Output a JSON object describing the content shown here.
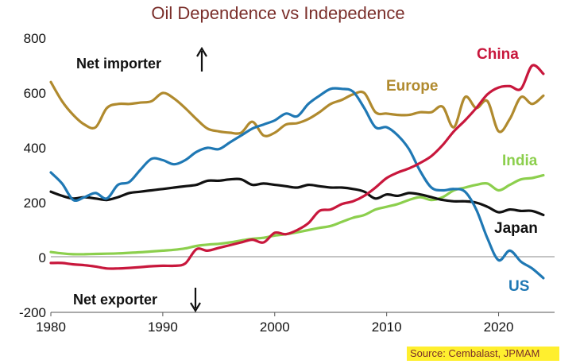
{
  "chart_data": {
    "type": "line",
    "title": "Oil Dependence vs Indepedence",
    "xlabel": "",
    "ylabel": "",
    "xlim": [
      1980,
      2025
    ],
    "ylim": [
      -200,
      800
    ],
    "x_ticks": [
      1980,
      1990,
      2000,
      2010,
      2020
    ],
    "x_tick_labels": [
      "1980",
      "1990",
      "2000",
      "2010",
      "2020"
    ],
    "y_ticks": [
      -200,
      0,
      200,
      400,
      600,
      800
    ],
    "y_tick_labels": [
      "-200",
      "0",
      "200",
      "400",
      "600",
      "800"
    ],
    "grid": "horizontal-at-zero",
    "annotations": {
      "net_importer": "Net importer",
      "net_exporter": "Net exporter",
      "source": "Source: Cembalast, JPMAM"
    },
    "series": [
      {
        "name": "US",
        "color": "#1f78b4",
        "x": [
          1980,
          1981,
          1982,
          1983,
          1984,
          1985,
          1986,
          1987,
          1988,
          1989,
          1990,
          1991,
          1992,
          1993,
          1994,
          1995,
          1996,
          1997,
          1998,
          1999,
          2000,
          2001,
          2002,
          2003,
          2004,
          2005,
          2006,
          2007,
          2008,
          2009,
          2010,
          2011,
          2012,
          2013,
          2014,
          2015,
          2016,
          2017,
          2018,
          2019,
          2020,
          2021,
          2022,
          2023,
          2024
        ],
        "values": [
          310,
          270,
          210,
          220,
          235,
          215,
          265,
          275,
          320,
          360,
          355,
          340,
          355,
          385,
          400,
          395,
          420,
          445,
          470,
          485,
          500,
          525,
          515,
          560,
          590,
          615,
          615,
          605,
          545,
          475,
          475,
          445,
          395,
          315,
          255,
          245,
          250,
          240,
          175,
          70,
          -10,
          25,
          -15,
          -40,
          -75
        ]
      },
      {
        "name": "Europe",
        "color": "#b08a2e",
        "x": [
          1980,
          1981,
          1982,
          1983,
          1984,
          1985,
          1986,
          1987,
          1988,
          1989,
          1990,
          1991,
          1992,
          1993,
          1994,
          1995,
          1996,
          1997,
          1998,
          1999,
          2000,
          2001,
          2002,
          2003,
          2004,
          2005,
          2006,
          2007,
          2008,
          2009,
          2010,
          2011,
          2012,
          2013,
          2014,
          2015,
          2016,
          2017,
          2018,
          2019,
          2020,
          2021,
          2022,
          2023,
          2024
        ],
        "values": [
          640,
          570,
          520,
          485,
          475,
          545,
          560,
          560,
          565,
          570,
          600,
          580,
          545,
          505,
          470,
          460,
          455,
          455,
          495,
          445,
          455,
          485,
          490,
          505,
          530,
          560,
          575,
          595,
          600,
          530,
          525,
          520,
          520,
          530,
          530,
          550,
          475,
          585,
          545,
          570,
          460,
          505,
          585,
          560,
          590
        ]
      },
      {
        "name": "China",
        "color": "#c8173c",
        "x": [
          1980,
          1981,
          1982,
          1983,
          1984,
          1985,
          1986,
          1987,
          1988,
          1989,
          1990,
          1991,
          1992,
          1993,
          1994,
          1995,
          1996,
          1997,
          1998,
          1999,
          2000,
          2001,
          2002,
          2003,
          2004,
          2005,
          2006,
          2007,
          2008,
          2009,
          2010,
          2011,
          2012,
          2013,
          2014,
          2015,
          2016,
          2017,
          2018,
          2019,
          2020,
          2021,
          2022,
          2023,
          2024
        ],
        "values": [
          -20,
          -20,
          -25,
          -28,
          -33,
          -40,
          -40,
          -38,
          -35,
          -32,
          -30,
          -30,
          -22,
          30,
          25,
          35,
          45,
          55,
          65,
          55,
          90,
          85,
          100,
          125,
          170,
          175,
          195,
          205,
          225,
          255,
          290,
          310,
          325,
          345,
          370,
          410,
          460,
          500,
          545,
          595,
          620,
          625,
          615,
          700,
          670
        ]
      },
      {
        "name": "India",
        "color": "#8ccf4d",
        "x": [
          1980,
          1981,
          1982,
          1983,
          1984,
          1985,
          1986,
          1987,
          1988,
          1989,
          1990,
          1991,
          1992,
          1993,
          1994,
          1995,
          1996,
          1997,
          1998,
          1999,
          2000,
          2001,
          2002,
          2003,
          2004,
          2005,
          2006,
          2007,
          2008,
          2009,
          2010,
          2011,
          2012,
          2013,
          2014,
          2015,
          2016,
          2017,
          2018,
          2019,
          2020,
          2021,
          2022,
          2023,
          2024
        ],
        "values": [
          20,
          15,
          12,
          12,
          13,
          14,
          15,
          17,
          19,
          22,
          25,
          28,
          33,
          42,
          47,
          50,
          55,
          62,
          68,
          72,
          80,
          85,
          92,
          100,
          108,
          115,
          130,
          145,
          155,
          175,
          185,
          195,
          210,
          220,
          210,
          220,
          245,
          255,
          265,
          270,
          245,
          265,
          285,
          290,
          300
        ]
      },
      {
        "name": "Japan",
        "color": "#111111",
        "x": [
          1980,
          1981,
          1982,
          1983,
          1984,
          1985,
          1986,
          1987,
          1988,
          1989,
          1990,
          1991,
          1992,
          1993,
          1994,
          1995,
          1996,
          1997,
          1998,
          1999,
          2000,
          2001,
          2002,
          2003,
          2004,
          2005,
          2006,
          2007,
          2008,
          2009,
          2010,
          2011,
          2012,
          2013,
          2014,
          2015,
          2016,
          2017,
          2018,
          2019,
          2020,
          2021,
          2022,
          2023,
          2024
        ],
        "values": [
          240,
          225,
          215,
          220,
          215,
          210,
          220,
          235,
          240,
          245,
          250,
          255,
          260,
          265,
          280,
          280,
          285,
          285,
          265,
          270,
          265,
          260,
          255,
          265,
          260,
          255,
          255,
          250,
          240,
          215,
          230,
          225,
          235,
          230,
          220,
          210,
          205,
          205,
          200,
          185,
          165,
          175,
          170,
          170,
          155
        ]
      }
    ]
  }
}
